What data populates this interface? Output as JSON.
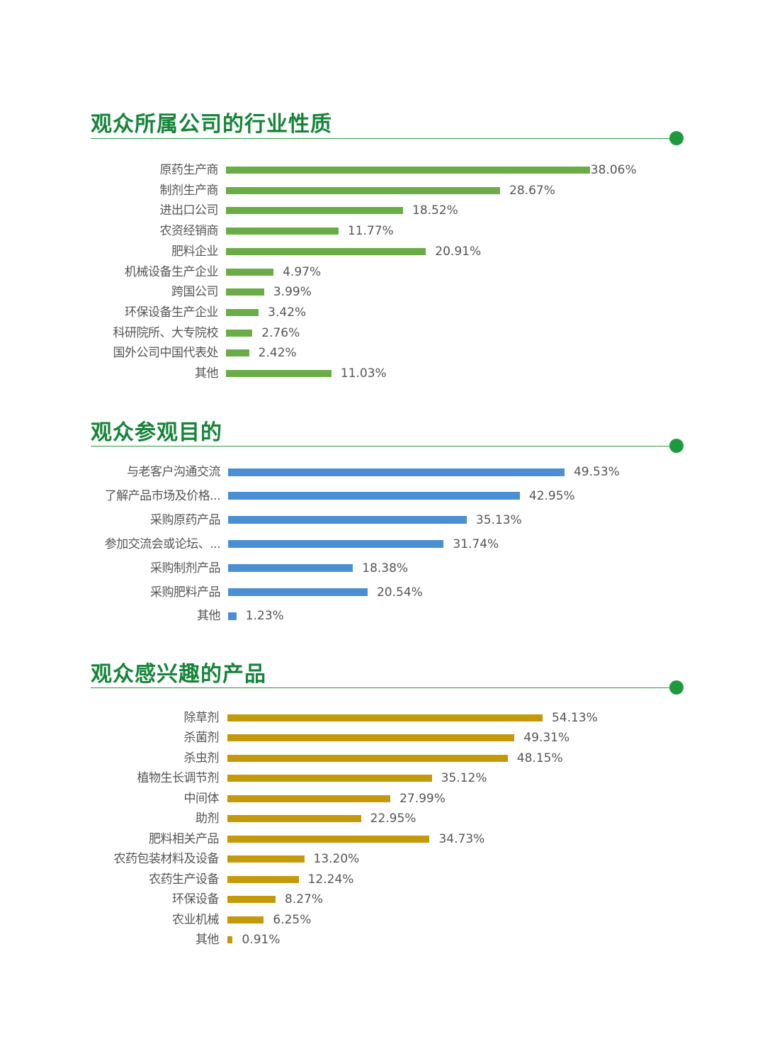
{
  "chart_data": [
    {
      "type": "bar",
      "orientation": "horizontal",
      "title": "观众所属公司的行业性质",
      "color": "#6aad46",
      "categories": [
        "原药生产商",
        "制剂生产商",
        "进出口公司",
        "农资经销商",
        "肥料企业",
        "机械设备生产企业",
        "跨国公司",
        "环保设备生产企业",
        "科研院所、大专院校",
        "国外公司中国代表处",
        "其他"
      ],
      "values": [
        38.06,
        28.67,
        18.52,
        11.77,
        20.91,
        4.97,
        3.99,
        3.42,
        2.76,
        2.42,
        11.03
      ],
      "labels": [
        "38.06%",
        "28.67%",
        "18.52%",
        "11.77%",
        "20.91%",
        "4.97%",
        "3.99%",
        "3.42%",
        "2.76%",
        "2.42%",
        "11.03%"
      ]
    },
    {
      "type": "bar",
      "orientation": "horizontal",
      "title": "观众参观目的",
      "color": "#4a8fd4",
      "categories": [
        "与老客户沟通交流",
        "了解产品市场及价格...",
        "采购原药产品",
        "参加交流会或论坛、...",
        "采购制剂产品",
        "采购肥料产品",
        "其他"
      ],
      "values": [
        49.53,
        42.95,
        35.13,
        31.74,
        18.38,
        20.54,
        1.23
      ],
      "labels": [
        "49.53%",
        "42.95%",
        "35.13%",
        "31.74%",
        "18.38%",
        "20.54%",
        "1.23%"
      ]
    },
    {
      "type": "bar",
      "orientation": "horizontal",
      "title": "观众感兴趣的产品",
      "color": "#c49a0a",
      "categories": [
        "除草剂",
        "杀菌剂",
        "杀虫剂",
        "植物生长调节剂",
        "中间体",
        "助剂",
        "肥料相关产品",
        "农药包装材料及设备",
        "农药生产设备",
        "环保设备",
        "农业机械",
        "其他"
      ],
      "values": [
        54.13,
        49.31,
        48.15,
        35.12,
        27.99,
        22.95,
        34.73,
        13.2,
        12.24,
        8.27,
        6.25,
        0.91
      ],
      "labels": [
        "54.13%",
        "49.31%",
        "48.15%",
        "35.12%",
        "27.99%",
        "22.95%",
        "34.73%",
        "13.20%",
        "12.24%",
        "8.27%",
        "6.25%",
        "0.91%"
      ]
    }
  ]
}
